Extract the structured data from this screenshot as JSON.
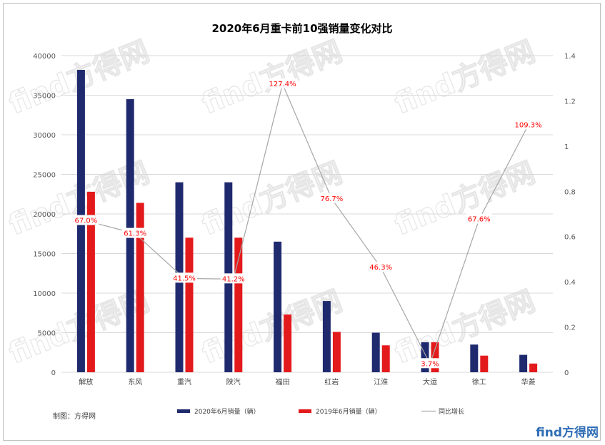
{
  "chart_data": {
    "type": "bar",
    "title": "2020年6月重卡前10强销量变化对比",
    "categories": [
      "解放",
      "东风",
      "重汽",
      "陕汽",
      "福田",
      "红岩",
      "江淮",
      "大运",
      "徐工",
      "华菱"
    ],
    "series": [
      {
        "name": "2020年6月销量（辆）",
        "type": "bar",
        "axis": "left",
        "color": "#1f2a6e",
        "values": [
          38200,
          34500,
          24000,
          24000,
          16500,
          9000,
          5000,
          3800,
          3500,
          2200
        ]
      },
      {
        "name": "2019年6月销量（辆）",
        "type": "bar",
        "axis": "left",
        "color": "#e31a1c",
        "values": [
          22800,
          21400,
          17000,
          17000,
          7300,
          5100,
          3400,
          3800,
          2100,
          1100
        ]
      },
      {
        "name": "同比增长",
        "type": "line",
        "axis": "right",
        "color": "#a6a6a6",
        "values": [
          0.67,
          0.613,
          0.415,
          0.412,
          1.274,
          0.767,
          0.463,
          0.037,
          0.676,
          1.093
        ],
        "labels": [
          "67.0%",
          "61.3%",
          "41.5%",
          "41.2%",
          "127.4%",
          "76.7%",
          "46.3%",
          "3.7%",
          "67.6%",
          "109.3%"
        ]
      }
    ],
    "y_left": {
      "min": 0,
      "max": 40000,
      "step": 5000,
      "ticks": [
        "0",
        "5000",
        "10000",
        "15000",
        "20000",
        "25000",
        "30000",
        "35000",
        "40000"
      ]
    },
    "y_right": {
      "min": 0,
      "max": 1.4,
      "step": 0.2,
      "ticks": [
        "0",
        "0.2",
        "0.4",
        "0.6",
        "0.8",
        "1",
        "1.2",
        "1.4"
      ]
    },
    "grid": true,
    "legend_position": "bottom",
    "label_color": "#ff0000"
  },
  "credit": "制图：方得网",
  "watermark": "find方得网",
  "logo": "find方得网"
}
